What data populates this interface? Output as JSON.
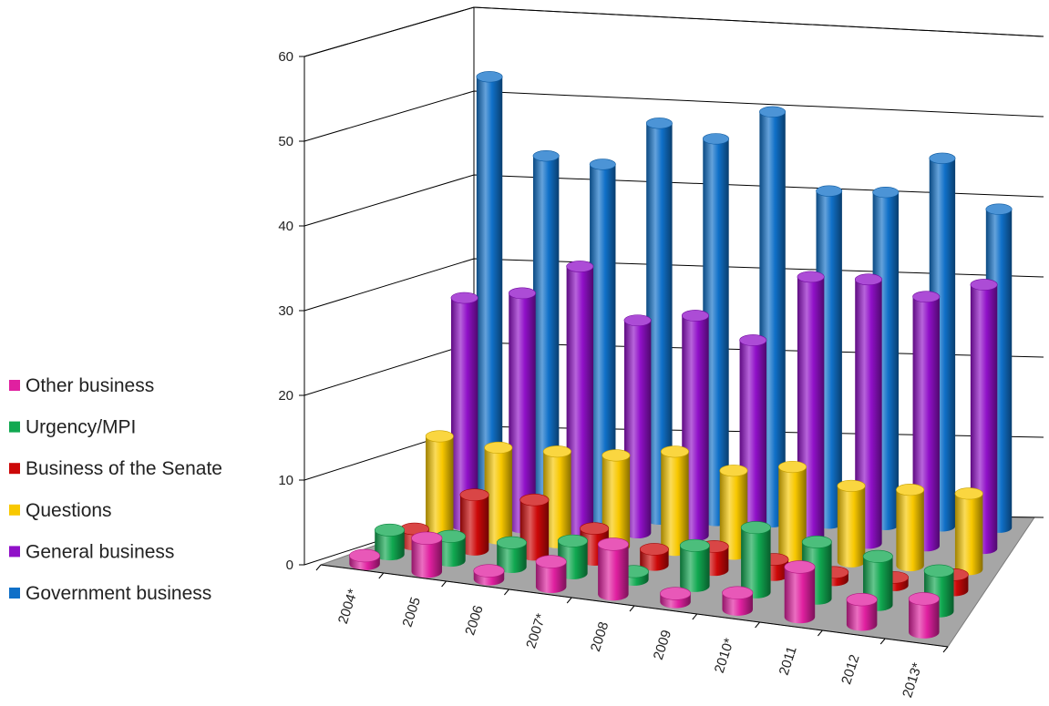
{
  "chart_data": {
    "type": "bar",
    "categories": [
      "2004*",
      "2005",
      "2006",
      "2007*",
      "2008",
      "2009",
      "2010*",
      "2011",
      "2012",
      "2013*"
    ],
    "ylim": [
      0,
      60
    ],
    "yticks": [
      0,
      10,
      20,
      30,
      40,
      50,
      60
    ],
    "grid": true,
    "legend_position": "left",
    "series": [
      {
        "name": "Other business",
        "color": "#e020a0",
        "values": [
          1,
          4,
          1,
          3,
          6,
          1,
          2,
          6,
          3,
          4
        ]
      },
      {
        "name": "Urgency/MPI",
        "color": "#10a850",
        "values": [
          3,
          3,
          3,
          4,
          1,
          5,
          8,
          7,
          6,
          5
        ]
      },
      {
        "name": "Business of the Senate",
        "color": "#cc0808",
        "values": [
          2,
          7,
          7,
          4,
          2,
          3,
          2,
          1,
          1,
          2
        ]
      },
      {
        "name": "Questions",
        "color": "#f8c800",
        "values": [
          13,
          12,
          12,
          12,
          13,
          11,
          12,
          10,
          10,
          10
        ]
      },
      {
        "name": "General business",
        "color": "#9010c8",
        "values": [
          31,
          32,
          36,
          29,
          30,
          27,
          36,
          36,
          34,
          36
        ]
      },
      {
        "name": "Government business",
        "color": "#1070c8",
        "values": [
          62,
          51,
          50,
          56,
          54,
          58,
          47,
          47,
          52,
          45
        ]
      }
    ]
  }
}
